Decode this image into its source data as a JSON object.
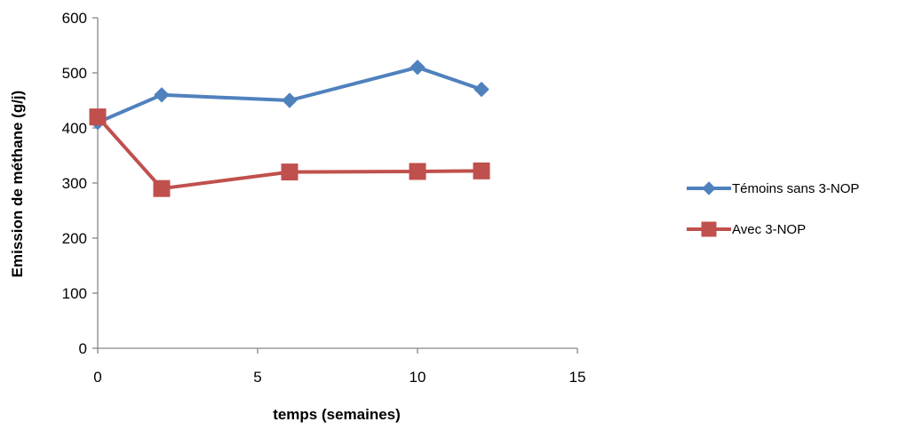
{
  "chart_data": {
    "type": "line",
    "title": "",
    "xlabel": "temps (semaines)",
    "ylabel": "Emission de méthane (g/j)",
    "xlim": [
      0,
      15
    ],
    "ylim": [
      0,
      600
    ],
    "xticks": [
      0,
      5,
      10,
      15
    ],
    "yticks": [
      0,
      100,
      200,
      300,
      400,
      500,
      600
    ],
    "grid": false,
    "legend_position": "right",
    "series": [
      {
        "name": "Témoins sans 3-NOP",
        "marker": "diamond",
        "color": "#4F81BD",
        "x": [
          0,
          2,
          6,
          10,
          12
        ],
        "y": [
          410,
          460,
          450,
          510,
          470
        ]
      },
      {
        "name": "Avec 3-NOP",
        "marker": "square",
        "color": "#C0504D",
        "x": [
          0,
          2,
          6,
          10,
          12
        ],
        "y": [
          420,
          290,
          320,
          321,
          322
        ]
      }
    ]
  }
}
